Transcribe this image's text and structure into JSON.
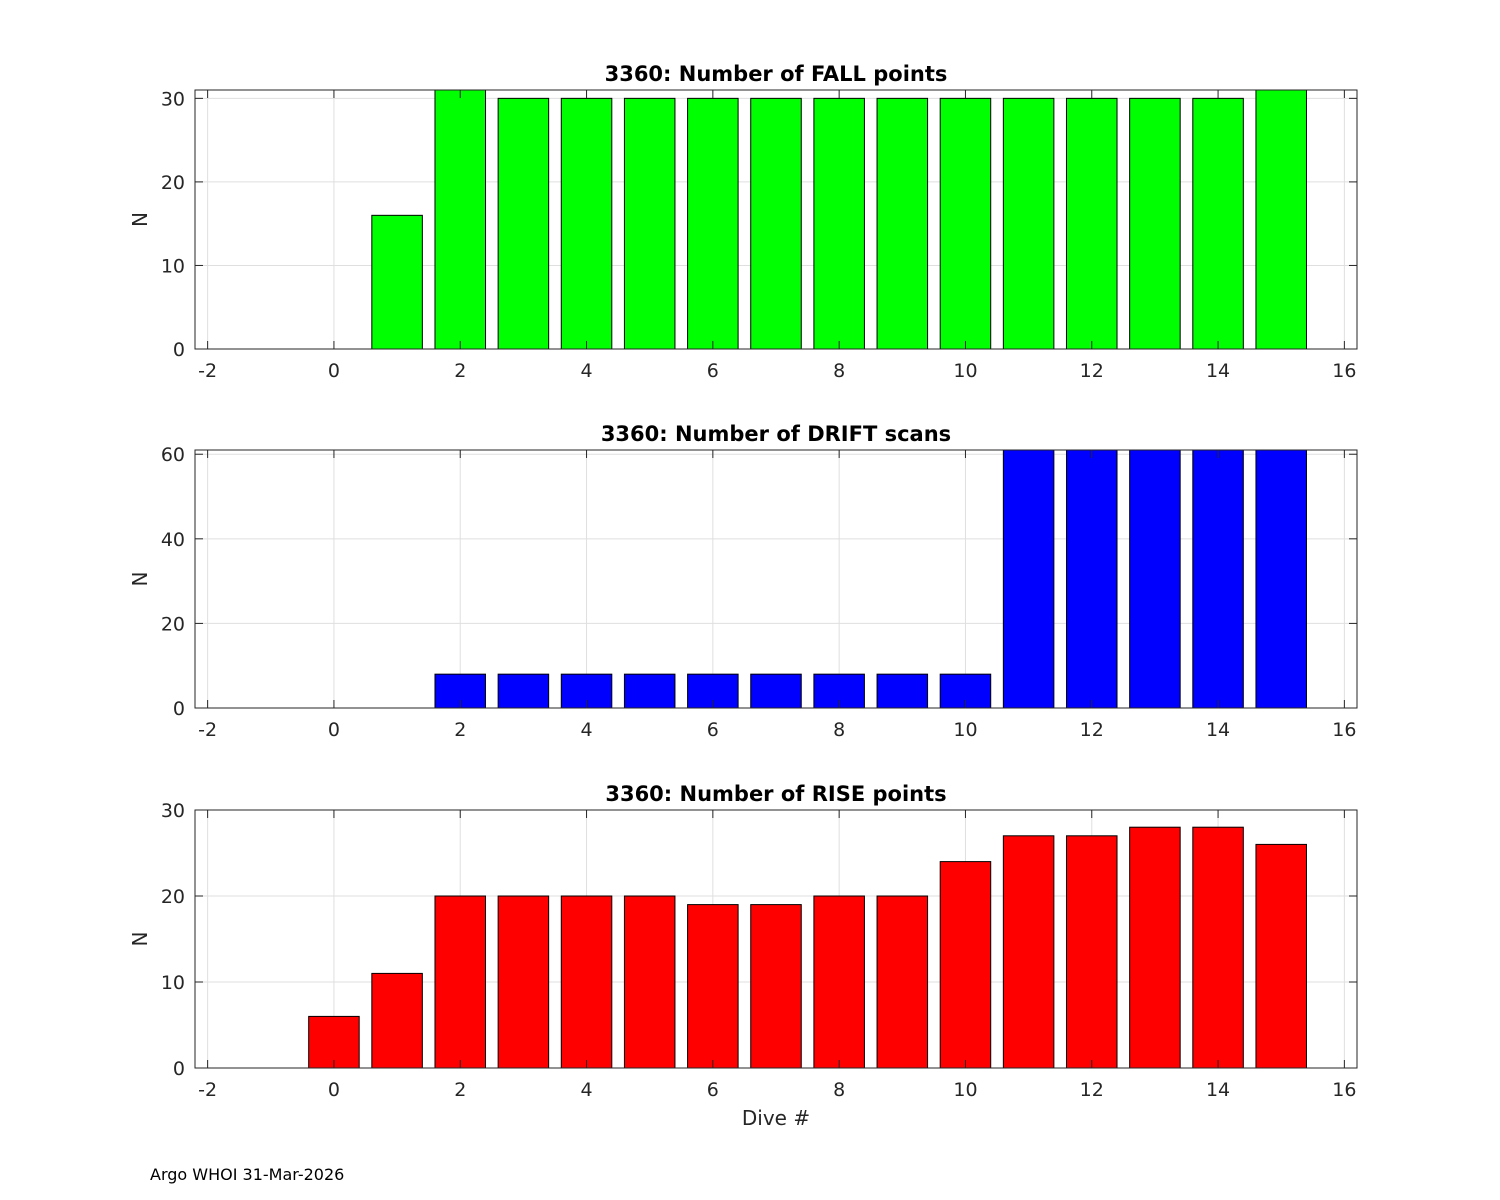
{
  "footer": "Argo WHOI 31-Mar-2026",
  "chart_data": [
    {
      "type": "bar",
      "title": "3360: Number of FALL points",
      "xlabel": "",
      "ylabel": "N",
      "xlim": [
        -2.2,
        16.2
      ],
      "ylim": [
        0,
        31
      ],
      "xticks": [
        "-2",
        "0",
        "2",
        "4",
        "6",
        "8",
        "10",
        "12",
        "14",
        "16"
      ],
      "yticks": [
        "0",
        "10",
        "20",
        "30"
      ],
      "x": [
        1,
        2,
        3,
        4,
        5,
        6,
        7,
        8,
        9,
        10,
        11,
        12,
        13,
        14,
        15
      ],
      "values": [
        16,
        31,
        30,
        30,
        30,
        30,
        30,
        30,
        30,
        30,
        30,
        30,
        30,
        30,
        31
      ],
      "color": "#00ff00",
      "grid": true
    },
    {
      "type": "bar",
      "title": "3360: Number of DRIFT scans",
      "xlabel": "",
      "ylabel": "N",
      "xlim": [
        -2.2,
        16.2
      ],
      "ylim": [
        0,
        61
      ],
      "xticks": [
        "-2",
        "0",
        "2",
        "4",
        "6",
        "8",
        "10",
        "12",
        "14",
        "16"
      ],
      "yticks": [
        "0",
        "20",
        "40",
        "60"
      ],
      "x": [
        2,
        3,
        4,
        5,
        6,
        7,
        8,
        9,
        10,
        11,
        12,
        13,
        14,
        15
      ],
      "values": [
        8,
        8,
        8,
        8,
        8,
        8,
        8,
        8,
        8,
        61,
        61,
        61,
        61,
        61
      ],
      "color": "#0000ff",
      "grid": true
    },
    {
      "type": "bar",
      "title": "3360: Number of RISE points",
      "xlabel": "Dive #",
      "ylabel": "N",
      "xlim": [
        -2.2,
        16.2
      ],
      "ylim": [
        0,
        30
      ],
      "xticks": [
        "-2",
        "0",
        "2",
        "4",
        "6",
        "8",
        "10",
        "12",
        "14",
        "16"
      ],
      "yticks": [
        "0",
        "10",
        "20",
        "30"
      ],
      "x": [
        0,
        1,
        2,
        3,
        4,
        5,
        6,
        7,
        8,
        9,
        10,
        11,
        12,
        13,
        14,
        15
      ],
      "values": [
        6,
        11,
        20,
        20,
        20,
        20,
        19,
        19,
        20,
        20,
        24,
        27,
        27,
        28,
        28,
        26
      ],
      "color": "#ff0000",
      "grid": true
    }
  ]
}
